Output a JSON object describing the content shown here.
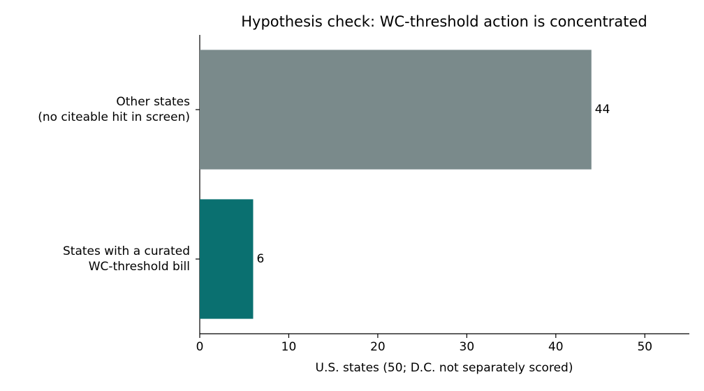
{
  "chart_data": {
    "type": "barh",
    "title": "Hypothesis check: WC-threshold action is concentrated",
    "xlabel": "U.S. states (50; D.C. not separately scored)",
    "categories": [
      [
        "Other states",
        "(no citeable hit in screen)"
      ],
      [
        "States with a curated",
        "WC-threshold bill"
      ]
    ],
    "values": [
      44,
      6
    ],
    "colors": [
      "#7a8a8b",
      "#0a7070"
    ],
    "xlim": [
      0,
      55
    ],
    "xticks": [
      0,
      10,
      20,
      30,
      40,
      50
    ],
    "grid": false
  }
}
